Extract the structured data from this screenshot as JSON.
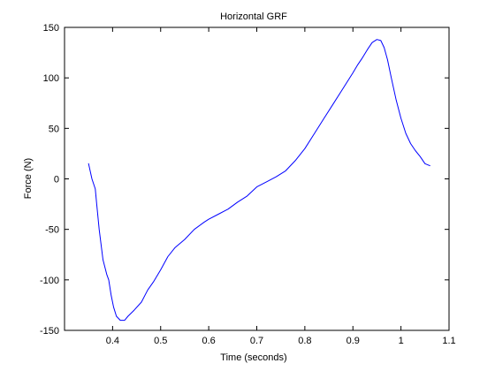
{
  "chart_data": {
    "type": "line",
    "title": "Horizontal GRF",
    "xlabel": "Time (seconds)",
    "ylabel": "Force (N)",
    "xlim": [
      0.3,
      1.1
    ],
    "ylim": [
      -150,
      150
    ],
    "grid": false,
    "x_ticks": [
      0.4,
      0.5,
      0.6,
      0.7,
      0.8,
      0.9,
      1.0,
      1.1
    ],
    "x_tick_labels": [
      "0.4",
      "0.5",
      "0.6",
      "0.7",
      "0.8",
      "0.9",
      "1",
      "1.1"
    ],
    "y_ticks": [
      -150,
      -100,
      -50,
      0,
      50,
      100,
      150
    ],
    "y_tick_labels": [
      "-150",
      "-100",
      "-50",
      "0",
      "50",
      "100",
      "150"
    ],
    "series": [
      {
        "name": "Horizontal GRF",
        "color": "#0000ff",
        "x": [
          0.35,
          0.357,
          0.364,
          0.367,
          0.372,
          0.38,
          0.388,
          0.392,
          0.397,
          0.402,
          0.408,
          0.416,
          0.425,
          0.432,
          0.445,
          0.46,
          0.473,
          0.485,
          0.5,
          0.515,
          0.53,
          0.55,
          0.57,
          0.59,
          0.6,
          0.62,
          0.64,
          0.66,
          0.68,
          0.7,
          0.72,
          0.74,
          0.76,
          0.78,
          0.8,
          0.82,
          0.84,
          0.86,
          0.88,
          0.9,
          0.91,
          0.92,
          0.93,
          0.94,
          0.95,
          0.958,
          0.965,
          0.972,
          0.98,
          0.99,
          1.0,
          1.01,
          1.02,
          1.03,
          1.04,
          1.05,
          1.06
        ],
        "y": [
          15,
          0,
          -10,
          -25,
          -50,
          -80,
          -95,
          -100,
          -115,
          -127,
          -136,
          -140,
          -140,
          -136,
          -130,
          -122,
          -110,
          -102,
          -90,
          -77,
          -68,
          -60,
          -50,
          -43,
          -40,
          -35,
          -30,
          -23,
          -17,
          -8,
          -3,
          2,
          8,
          18,
          30,
          45,
          60,
          75,
          90,
          105,
          113,
          120,
          128,
          135,
          138,
          137,
          130,
          118,
          100,
          78,
          60,
          45,
          35,
          28,
          22,
          15,
          13
        ]
      }
    ]
  }
}
